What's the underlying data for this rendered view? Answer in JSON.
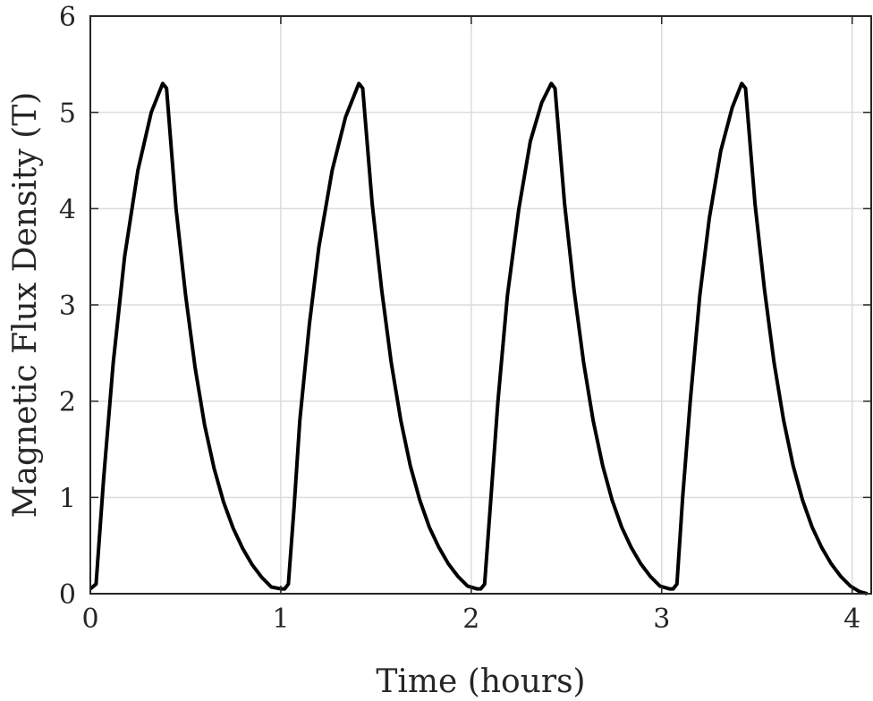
{
  "chart_data": {
    "type": "line",
    "title": "",
    "xlabel": "Time (hours)",
    "ylabel": "Magnetic Flux Density (T)",
    "xlim": [
      0,
      4.1
    ],
    "ylim": [
      0,
      6
    ],
    "xticks": [
      0,
      1,
      2,
      3,
      4
    ],
    "yticks": [
      0,
      1,
      2,
      3,
      4,
      5,
      6
    ],
    "grid": true,
    "legend": "none",
    "series_color": "#000000",
    "series": [
      {
        "x": [
          0.0,
          0.03,
          0.07,
          0.12,
          0.18,
          0.25,
          0.32,
          0.38,
          0.4,
          0.45,
          0.5,
          0.55,
          0.6,
          0.65,
          0.7,
          0.75,
          0.8,
          0.85,
          0.9,
          0.95,
          1.0,
          1.02,
          1.04,
          1.07,
          1.1,
          1.15,
          1.2,
          1.27,
          1.34,
          1.41,
          1.43,
          1.48,
          1.53,
          1.58,
          1.63,
          1.68,
          1.73,
          1.78,
          1.83,
          1.88,
          1.93,
          1.98,
          2.03,
          2.05,
          2.07,
          2.1,
          2.14,
          2.19,
          2.25,
          2.31,
          2.37,
          2.42,
          2.44,
          2.49,
          2.54,
          2.59,
          2.64,
          2.69,
          2.74,
          2.79,
          2.84,
          2.89,
          2.94,
          2.99,
          3.04,
          3.06,
          3.08,
          3.11,
          3.15,
          3.2,
          3.25,
          3.31,
          3.37,
          3.42,
          3.44,
          3.49,
          3.54,
          3.59,
          3.64,
          3.69,
          3.74,
          3.79,
          3.84,
          3.89,
          3.94,
          3.99,
          4.04,
          4.08
        ],
        "y": [
          0.05,
          0.1,
          1.2,
          2.4,
          3.5,
          4.4,
          5.0,
          5.3,
          5.25,
          4.0,
          3.1,
          2.35,
          1.75,
          1.3,
          0.95,
          0.68,
          0.47,
          0.3,
          0.17,
          0.07,
          0.05,
          0.05,
          0.1,
          0.9,
          1.8,
          2.8,
          3.6,
          4.4,
          4.95,
          5.3,
          5.25,
          4.05,
          3.15,
          2.4,
          1.8,
          1.33,
          0.97,
          0.69,
          0.48,
          0.31,
          0.18,
          0.08,
          0.05,
          0.05,
          0.1,
          0.9,
          2.0,
          3.1,
          4.0,
          4.7,
          5.1,
          5.3,
          5.25,
          4.05,
          3.15,
          2.4,
          1.8,
          1.33,
          0.97,
          0.69,
          0.48,
          0.31,
          0.18,
          0.08,
          0.05,
          0.05,
          0.1,
          1.0,
          2.0,
          3.1,
          3.9,
          4.6,
          5.05,
          5.3,
          5.25,
          4.05,
          3.15,
          2.4,
          1.8,
          1.33,
          0.97,
          0.69,
          0.48,
          0.31,
          0.18,
          0.08,
          0.02,
          0.0
        ]
      }
    ]
  }
}
